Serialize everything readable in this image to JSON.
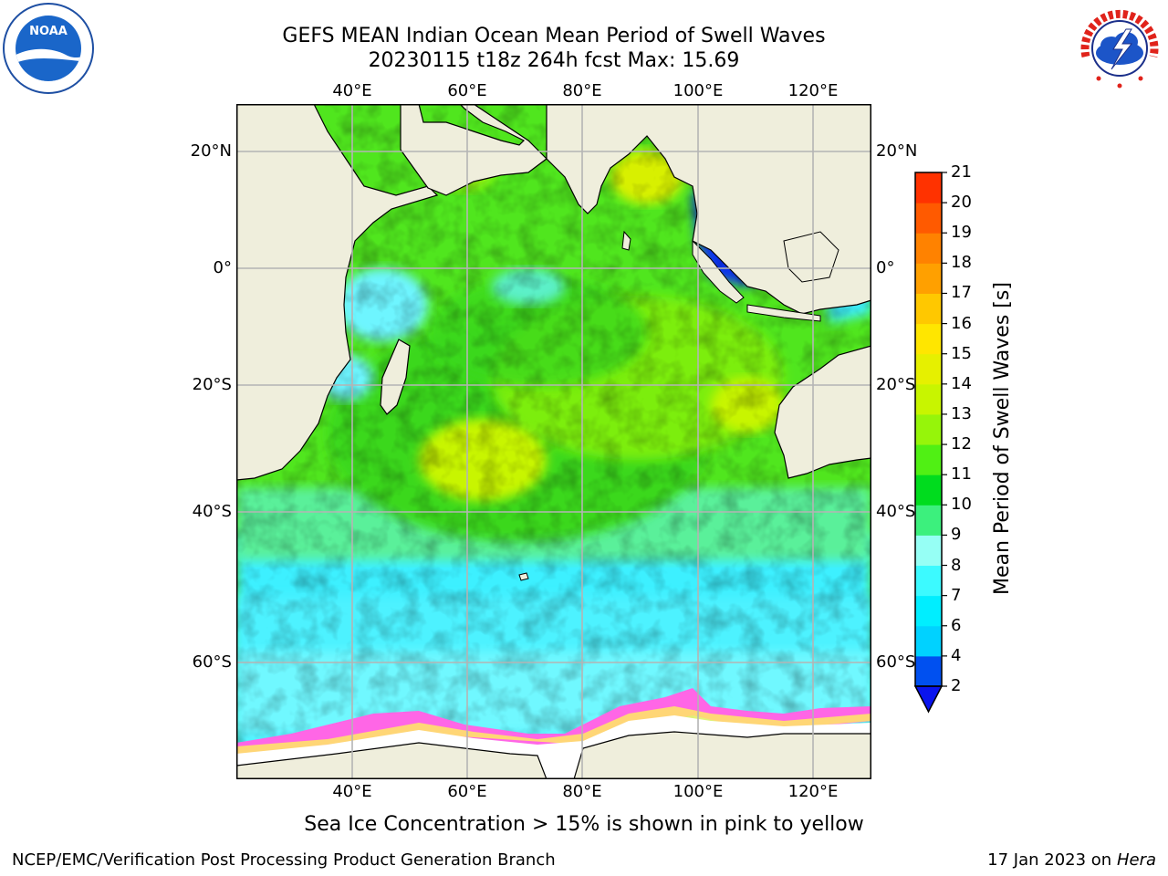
{
  "header": {
    "title_line1": "GEFS MEAN Indian Ocean Mean Period of Swell Waves",
    "title_line2": "20230115 t18z 264h fcst   Max: 15.69"
  },
  "logos": {
    "left": {
      "name": "noaa-logo",
      "text": "NOAA"
    },
    "right": {
      "name": "nws-logo",
      "text": "NATIONAL WEATHER SERVICE"
    }
  },
  "map": {
    "lon_labels": [
      "40°E",
      "60°E",
      "80°E",
      "100°E",
      "120°E"
    ],
    "lat_labels": [
      "20°N",
      "0°",
      "20°S",
      "40°S",
      "60°S"
    ],
    "colors": {
      "land": "#efeedc",
      "ice": "#ffffff",
      "grid": "#b4b4b4"
    }
  },
  "colorbar": {
    "label": "Mean Period of Swell Waves [s]",
    "ticks": [
      "2",
      "4",
      "6",
      "7",
      "8",
      "9",
      "10",
      "11",
      "12",
      "13",
      "14",
      "15",
      "16",
      "17",
      "18",
      "19",
      "20",
      "21"
    ],
    "colors": [
      "#0050f0",
      "#00d2ff",
      "#00eeff",
      "#3cfaff",
      "#96fff5",
      "#3cf07d",
      "#00dc1e",
      "#50f014",
      "#96f50a",
      "#c8f500",
      "#e6f000",
      "#ffe600",
      "#ffc800",
      "#ffa000",
      "#ff8200",
      "#ff5a00",
      "#ff3200",
      "#ff0000"
    ],
    "under_color": "#0a14ee"
  },
  "note": "Sea Ice Concentration > 15% is shown in pink to yellow",
  "footer": {
    "left": "NCEP/EMC/Verification Post Processing Product Generation Branch",
    "right_prefix": "17 Jan 2023 on ",
    "right_italic": "Hera"
  }
}
